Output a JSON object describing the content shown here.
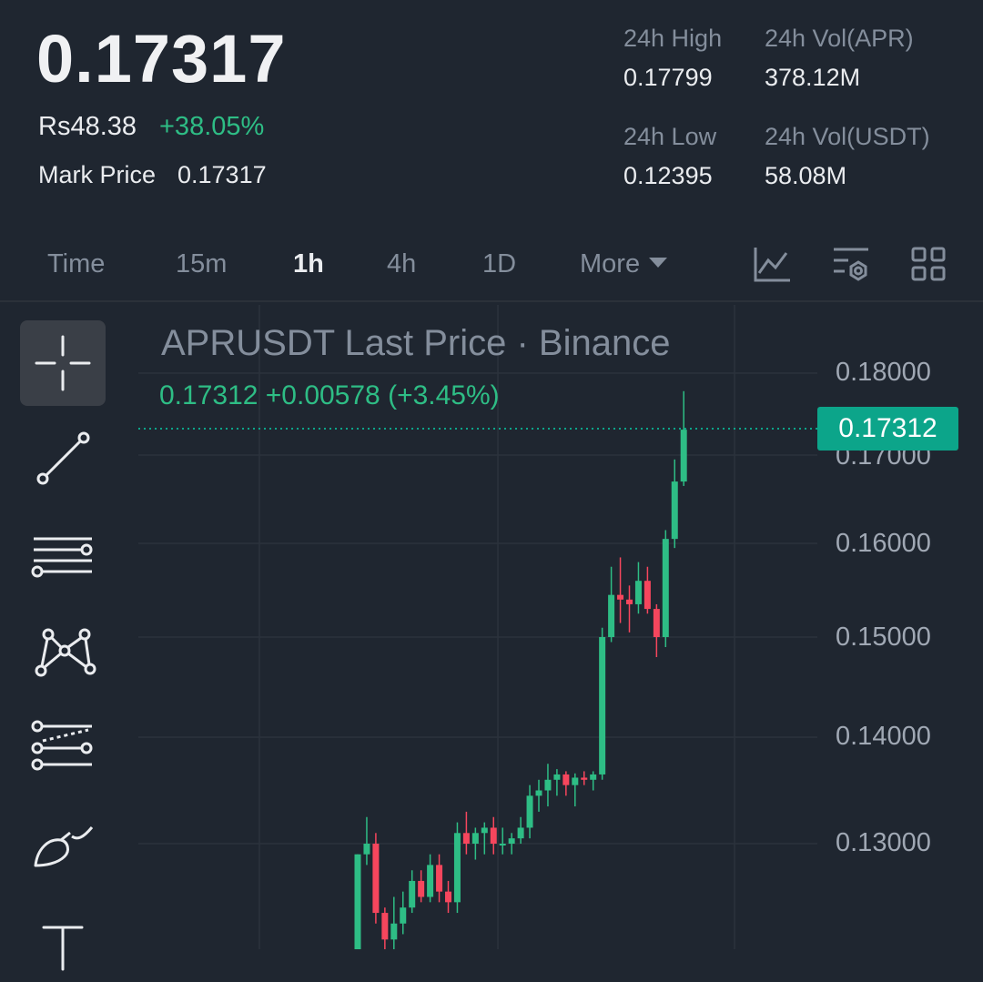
{
  "header": {
    "last_price": "0.17317",
    "fiat_price": "Rs48.38",
    "change_pct": "+38.05%",
    "mark_label": "Mark Price",
    "mark_value": "0.17317",
    "stats": {
      "high_label": "24h High",
      "high_value": "0.17799",
      "vol_base_label": "24h Vol(APR)",
      "vol_base_value": "378.12M",
      "low_label": "24h Low",
      "low_value": "0.12395",
      "vol_quote_label": "24h Vol(USDT)",
      "vol_quote_value": "58.08M"
    }
  },
  "timeframes": {
    "time": "Time",
    "m15": "15m",
    "h1": "1h",
    "h4": "4h",
    "d1": "1D",
    "more": "More",
    "active": "1h"
  },
  "toolbar_icons": [
    "indicator-chart-icon",
    "chart-settings-icon",
    "layout-grid-icon"
  ],
  "drawing_tools": [
    "crosshair-icon",
    "trend-line-icon",
    "horizontal-lines-icon",
    "pattern-icon",
    "fib-icon",
    "brush-icon",
    "text-icon"
  ],
  "chart": {
    "title": "APRUSDT Last Price · Binance",
    "ohlc_line": "0.17312  +0.00578 (+3.45%)",
    "last_tag": "0.17312"
  },
  "colors": {
    "up": "#2ebd85",
    "down": "#f6465d",
    "tag": "#0ca58a",
    "bg": "#1f2630"
  },
  "chart_data": {
    "type": "candlestick",
    "y_axis_labels": [
      "0.18000",
      "0.17000",
      "0.16000",
      "0.15000",
      "0.14000",
      "0.13000"
    ],
    "last_price": 0.17312,
    "candles": [
      {
        "o": 0.1195,
        "h": 0.129,
        "l": 0.1195,
        "c": 0.129
      },
      {
        "o": 0.129,
        "h": 0.1325,
        "l": 0.128,
        "c": 0.13
      },
      {
        "o": 0.13,
        "h": 0.131,
        "l": 0.1225,
        "c": 0.1235
      },
      {
        "o": 0.1235,
        "h": 0.124,
        "l": 0.1195,
        "c": 0.121
      },
      {
        "o": 0.121,
        "h": 0.125,
        "l": 0.12,
        "c": 0.1225
      },
      {
        "o": 0.1225,
        "h": 0.1255,
        "l": 0.1215,
        "c": 0.124
      },
      {
        "o": 0.124,
        "h": 0.1275,
        "l": 0.1235,
        "c": 0.1265
      },
      {
        "o": 0.1265,
        "h": 0.1275,
        "l": 0.1245,
        "c": 0.125
      },
      {
        "o": 0.125,
        "h": 0.129,
        "l": 0.1245,
        "c": 0.128
      },
      {
        "o": 0.128,
        "h": 0.129,
        "l": 0.1245,
        "c": 0.1255
      },
      {
        "o": 0.1255,
        "h": 0.1265,
        "l": 0.1235,
        "c": 0.1245
      },
      {
        "o": 0.1245,
        "h": 0.132,
        "l": 0.1235,
        "c": 0.131
      },
      {
        "o": 0.131,
        "h": 0.133,
        "l": 0.129,
        "c": 0.13
      },
      {
        "o": 0.13,
        "h": 0.1315,
        "l": 0.1285,
        "c": 0.131
      },
      {
        "o": 0.131,
        "h": 0.132,
        "l": 0.129,
        "c": 0.1315
      },
      {
        "o": 0.1315,
        "h": 0.1325,
        "l": 0.129,
        "c": 0.13
      },
      {
        "o": 0.13,
        "h": 0.1315,
        "l": 0.129,
        "c": 0.13
      },
      {
        "o": 0.13,
        "h": 0.131,
        "l": 0.129,
        "c": 0.1305
      },
      {
        "o": 0.1305,
        "h": 0.1325,
        "l": 0.13,
        "c": 0.1315
      },
      {
        "o": 0.1315,
        "h": 0.1355,
        "l": 0.1305,
        "c": 0.1345
      },
      {
        "o": 0.1345,
        "h": 0.136,
        "l": 0.133,
        "c": 0.135
      },
      {
        "o": 0.135,
        "h": 0.1375,
        "l": 0.1335,
        "c": 0.136
      },
      {
        "o": 0.136,
        "h": 0.137,
        "l": 0.1345,
        "c": 0.1365
      },
      {
        "o": 0.1365,
        "h": 0.1368,
        "l": 0.1345,
        "c": 0.1355
      },
      {
        "o": 0.1355,
        "h": 0.1366,
        "l": 0.1335,
        "c": 0.1362
      },
      {
        "o": 0.1362,
        "h": 0.1368,
        "l": 0.1355,
        "c": 0.136
      },
      {
        "o": 0.136,
        "h": 0.1368,
        "l": 0.135,
        "c": 0.1365
      },
      {
        "o": 0.1365,
        "h": 0.151,
        "l": 0.136,
        "c": 0.15
      },
      {
        "o": 0.15,
        "h": 0.1575,
        "l": 0.1495,
        "c": 0.1545
      },
      {
        "o": 0.1545,
        "h": 0.1585,
        "l": 0.1515,
        "c": 0.154
      },
      {
        "o": 0.154,
        "h": 0.1555,
        "l": 0.1505,
        "c": 0.1535
      },
      {
        "o": 0.1535,
        "h": 0.158,
        "l": 0.1525,
        "c": 0.156
      },
      {
        "o": 0.156,
        "h": 0.1575,
        "l": 0.1525,
        "c": 0.153
      },
      {
        "o": 0.153,
        "h": 0.1535,
        "l": 0.148,
        "c": 0.15
      },
      {
        "o": 0.15,
        "h": 0.1615,
        "l": 0.149,
        "c": 0.1605
      },
      {
        "o": 0.1605,
        "h": 0.1695,
        "l": 0.1595,
        "c": 0.167
      },
      {
        "o": 0.167,
        "h": 0.1778,
        "l": 0.1665,
        "c": 0.1731
      }
    ]
  }
}
